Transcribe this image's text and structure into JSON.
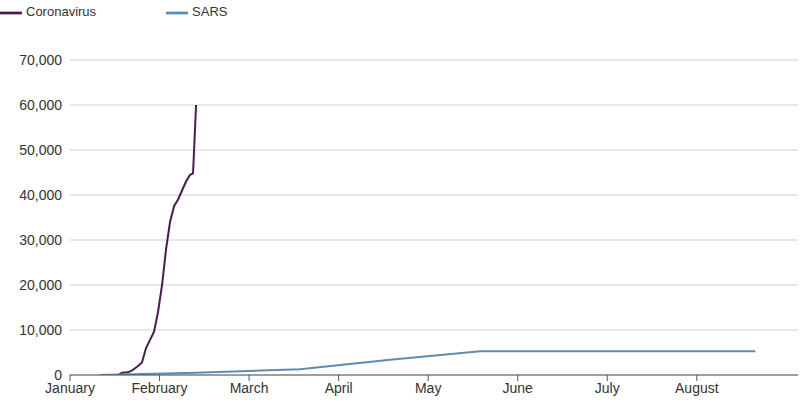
{
  "chart_data": {
    "type": "line",
    "series": [
      {
        "name": "Coronavirus",
        "color": "#4a1d4f",
        "x": [
          0.335,
          0.536,
          0.581,
          0.648,
          0.693,
          0.76,
          0.804,
          0.849,
          0.894,
          0.939,
          0.983,
          1.028,
          1.073,
          1.117,
          1.162,
          1.207,
          1.251,
          1.296,
          1.341,
          1.374,
          1.408
        ],
        "values": [
          0,
          0,
          500,
          600,
          1000,
          2000,
          2800,
          6000,
          7800,
          9700,
          14000,
          20000,
          28000,
          34000,
          37500,
          39000,
          41000,
          43000,
          44500,
          44800,
          60000
        ]
      },
      {
        "name": "SARS",
        "color": "#5b8cb8",
        "x": [
          0.335,
          1.408,
          2.57,
          3.017,
          3.575,
          4.581,
          7.654
        ],
        "values": [
          0,
          500,
          1300,
          2200,
          3400,
          5300,
          5300
        ]
      }
    ],
    "xlim": [
      0,
      8.13
    ],
    "xticks": [
      {
        "value": 0,
        "label": "January"
      },
      {
        "value": 1,
        "label": "February"
      },
      {
        "value": 2,
        "label": "March"
      },
      {
        "value": 3,
        "label": "April"
      },
      {
        "value": 4,
        "label": "May"
      },
      {
        "value": 5,
        "label": "June"
      },
      {
        "value": 6,
        "label": "July"
      },
      {
        "value": 7,
        "label": "August"
      }
    ],
    "ylim": [
      0,
      70000
    ],
    "yticks": [
      0,
      {
        "value": 10000,
        "label": "10,000"
      },
      {
        "value": 20000,
        "label": "20,000"
      },
      {
        "value": 30000,
        "label": "30,000"
      },
      {
        "value": 40000,
        "label": "40,000"
      },
      {
        "value": 50000,
        "label": "50,000"
      },
      {
        "value": 60000,
        "label": "60,000"
      },
      {
        "value": 70000,
        "label": "70,000"
      }
    ],
    "grid": true,
    "legend": "upper left"
  }
}
